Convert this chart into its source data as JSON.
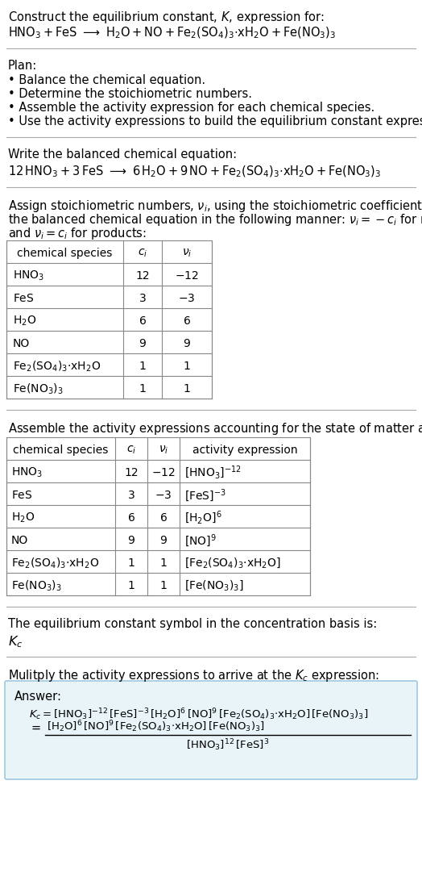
{
  "bg_color": "#ffffff",
  "text_color": "#000000",
  "section_line_color": "#cccccc",
  "answer_box_color": "#e8f4f8",
  "answer_box_edge": "#a0c8e0",
  "table1_rows": [
    [
      "$\\mathrm{HNO_3}$",
      "12",
      "$-12$"
    ],
    [
      "$\\mathrm{FeS}$",
      "3",
      "$-3$"
    ],
    [
      "$\\mathrm{H_2O}$",
      "6",
      "6"
    ],
    [
      "NO",
      "9",
      "9"
    ],
    [
      "$\\mathrm{Fe_2(SO_4)_3{\\cdot}xH_2O}$",
      "1",
      "1"
    ],
    [
      "$\\mathrm{Fe(NO_3)_3}$",
      "1",
      "1"
    ]
  ],
  "table2_rows": [
    [
      "$\\mathrm{HNO_3}$",
      "12",
      "$-12$",
      "$[\\mathrm{HNO_3}]^{-12}$"
    ],
    [
      "$\\mathrm{FeS}$",
      "3",
      "$-3$",
      "$[\\mathrm{FeS}]^{-3}$"
    ],
    [
      "$\\mathrm{H_2O}$",
      "6",
      "6",
      "$[\\mathrm{H_2O}]^{6}$"
    ],
    [
      "NO",
      "9",
      "9",
      "$[\\mathrm{NO}]^{9}$"
    ],
    [
      "$\\mathrm{Fe_2(SO_4)_3{\\cdot}xH_2O}$",
      "1",
      "1",
      "$[\\mathrm{Fe_2(SO_4)_3{\\cdot}xH_2O}]$"
    ],
    [
      "$\\mathrm{Fe(NO_3)_3}$",
      "1",
      "1",
      "$[\\mathrm{Fe(NO_3)_3}]$"
    ]
  ],
  "font_size": 10.5,
  "font_size_eq": 10.5,
  "font_size_table": 10
}
